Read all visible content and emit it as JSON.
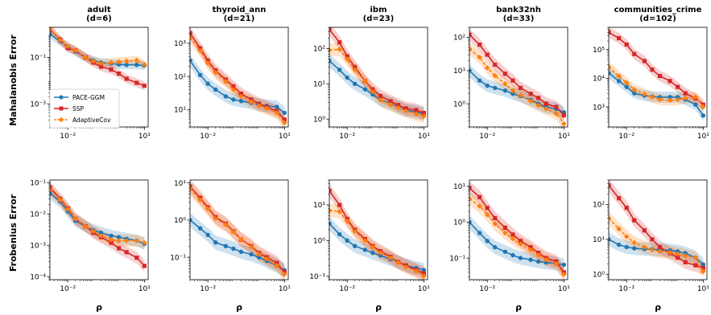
{
  "colors": {
    "PACE-GGM": "#1f77b4",
    "SSP": "#d62728",
    "AdaptiveCov": "#ff7f0e"
  },
  "row_labels": [
    "Mahalanobis Error",
    "Frobenius Error"
  ],
  "legend": {
    "placement": "lower-left",
    "entries": [
      "PACE-GGM",
      "SSP",
      "AdaptiveCov"
    ]
  },
  "chart_data": [
    {
      "type": "line",
      "title": "adult\n(d=6)",
      "xlabel": "",
      "ylabel": "Mahalanobis Error",
      "xscale": "log",
      "yscale": "log",
      "xlim": [
        0.002,
        14
      ],
      "ylim": [
        0.0001,
        2
      ],
      "xticks": [
        0.01,
        10
      ],
      "xtick_labels": [
        "10⁻²",
        "10¹"
      ],
      "yticks": [
        0.001,
        0.1
      ],
      "ytick_labels": [
        "10⁻³",
        "10⁻¹"
      ],
      "x": [
        0.002,
        0.005,
        0.01,
        0.02,
        0.05,
        0.1,
        0.2,
        0.5,
        1,
        2,
        5,
        10
      ],
      "series": [
        {
          "name": "PACE-GGM",
          "values": [
            1.0,
            0.5,
            0.3,
            0.18,
            0.1,
            0.075,
            0.06,
            0.055,
            0.05,
            0.048,
            0.048,
            0.045
          ]
        },
        {
          "name": "SSP",
          "values": [
            1.6,
            0.6,
            0.25,
            0.2,
            0.1,
            0.06,
            0.04,
            0.03,
            0.02,
            0.012,
            0.008,
            0.006
          ]
        },
        {
          "name": "AdaptiveCov",
          "values": [
            1.8,
            0.55,
            0.3,
            0.2,
            0.1,
            0.07,
            0.055,
            0.06,
            0.065,
            0.07,
            0.075,
            0.05
          ]
        }
      ]
    },
    {
      "type": "line",
      "title": "thyroid_ann\n(d=21)",
      "xlabel": "",
      "ylabel": "",
      "xscale": "log",
      "yscale": "log",
      "xlim": [
        0.002,
        14
      ],
      "ylim": [
        3,
        3000
      ],
      "xticks": [
        0.01,
        10
      ],
      "xtick_labels": [
        "10⁻²",
        "10¹"
      ],
      "yticks": [
        10,
        100,
        1000
      ],
      "ytick_labels": [
        "10¹",
        "10²",
        "10³"
      ],
      "x": [
        0.002,
        0.005,
        0.01,
        0.02,
        0.05,
        0.1,
        0.2,
        0.5,
        1,
        2,
        5,
        10
      ],
      "series": [
        {
          "name": "PACE-GGM",
          "values": [
            300,
            110,
            60,
            40,
            25,
            20,
            18,
            16,
            14,
            13,
            12,
            8
          ]
        },
        {
          "name": "SSP",
          "values": [
            2000,
            700,
            300,
            150,
            80,
            50,
            30,
            20,
            15,
            12,
            9,
            5
          ]
        },
        {
          "name": "AdaptiveCov",
          "values": [
            1500,
            600,
            250,
            130,
            70,
            40,
            25,
            17,
            13,
            11,
            8,
            4
          ]
        }
      ]
    },
    {
      "type": "line",
      "title": "ibm\n(d=23)",
      "xlabel": "",
      "ylabel": "",
      "xscale": "log",
      "yscale": "log",
      "xlim": [
        0.002,
        14
      ],
      "ylim": [
        0.6,
        400
      ],
      "xticks": [
        0.01,
        10
      ],
      "xtick_labels": [
        "10⁻²",
        "10¹"
      ],
      "yticks": [
        1,
        10,
        100
      ],
      "ytick_labels": [
        "10⁰",
        "10¹",
        "10²"
      ],
      "x": [
        0.002,
        0.005,
        0.01,
        0.02,
        0.05,
        0.1,
        0.2,
        0.5,
        1,
        2,
        5,
        10
      ],
      "series": [
        {
          "name": "PACE-GGM",
          "values": [
            45,
            25,
            15,
            10,
            7,
            5,
            3.5,
            2.8,
            2.2,
            1.8,
            1.6,
            1.4
          ]
        },
        {
          "name": "SSP",
          "values": [
            350,
            150,
            60,
            30,
            12,
            7,
            4.5,
            3.2,
            2.5,
            2.0,
            1.8,
            1.5
          ]
        },
        {
          "name": "AdaptiveCov",
          "values": [
            90,
            95,
            50,
            25,
            12,
            6,
            3.5,
            2.6,
            2.1,
            1.7,
            1.4,
            1.2
          ]
        }
      ]
    },
    {
      "type": "line",
      "title": "bank32nh\n(d=33)",
      "xlabel": "",
      "ylabel": "",
      "xscale": "log",
      "yscale": "log",
      "xlim": [
        0.002,
        14
      ],
      "ylim": [
        0.2,
        200
      ],
      "xticks": [
        0.01,
        10
      ],
      "xtick_labels": [
        "10⁻²",
        "10¹"
      ],
      "yticks": [
        1,
        10,
        100
      ],
      "ytick_labels": [
        "10⁰",
        "10¹",
        "10²"
      ],
      "x": [
        0.002,
        0.005,
        0.01,
        0.02,
        0.05,
        0.1,
        0.2,
        0.5,
        1,
        2,
        5,
        10
      ],
      "series": [
        {
          "name": "PACE-GGM",
          "values": [
            10,
            5,
            3.5,
            3,
            2.5,
            2,
            1.7,
            1.3,
            1.0,
            0.8,
            0.7,
            0.55
          ]
        },
        {
          "name": "SSP",
          "values": [
            120,
            60,
            30,
            15,
            8,
            5,
            3,
            2,
            1.5,
            1.0,
            0.8,
            0.45
          ]
        },
        {
          "name": "AdaptiveCov",
          "values": [
            45,
            25,
            12,
            7,
            4,
            2.5,
            1.8,
            1.2,
            0.9,
            0.7,
            0.5,
            0.25
          ]
        }
      ]
    },
    {
      "type": "line",
      "title": "communities_crime\n(d=102)",
      "xlabel": "",
      "ylabel": "",
      "xscale": "log",
      "yscale": "log",
      "xlim": [
        0.002,
        14
      ],
      "ylim": [
        200,
        600000
      ],
      "xticks": [
        0.01,
        10
      ],
      "xtick_labels": [
        "10⁻²",
        "10¹"
      ],
      "yticks": [
        1000,
        10000,
        100000
      ],
      "ytick_labels": [
        "10³",
        "10⁴",
        "10⁵"
      ],
      "x": [
        0.002,
        0.005,
        0.01,
        0.02,
        0.05,
        0.1,
        0.2,
        0.5,
        1,
        2,
        5,
        10
      ],
      "series": [
        {
          "name": "PACE-GGM",
          "values": [
            15000,
            8000,
            5000,
            3000,
            2500,
            2300,
            2200,
            2200,
            2200,
            1800,
            1200,
            500
          ]
        },
        {
          "name": "SSP",
          "values": [
            400000,
            250000,
            150000,
            70000,
            40000,
            20000,
            12000,
            8000,
            5000,
            3000,
            2000,
            1200
          ]
        },
        {
          "name": "AdaptiveCov",
          "values": [
            25000,
            12000,
            7000,
            4000,
            2800,
            2200,
            1800,
            1700,
            1800,
            2000,
            2200,
            1000
          ]
        }
      ]
    },
    {
      "type": "line",
      "title": "",
      "xlabel": "ρ",
      "ylabel": "Frobenius Error",
      "xscale": "log",
      "yscale": "log",
      "xlim": [
        0.002,
        14
      ],
      "ylim": [
        8e-05,
        0.12
      ],
      "xticks": [
        0.01,
        10
      ],
      "xtick_labels": [
        "10⁻²",
        "10¹"
      ],
      "yticks": [
        0.0001,
        0.001,
        0.01,
        0.1
      ],
      "ytick_labels": [
        "10⁻⁴",
        "10⁻³",
        "10⁻²",
        "10⁻¹"
      ],
      "x": [
        0.002,
        0.005,
        0.01,
        0.02,
        0.05,
        0.1,
        0.2,
        0.5,
        1,
        2,
        5,
        10
      ],
      "series": [
        {
          "name": "PACE-GGM",
          "values": [
            0.045,
            0.025,
            0.012,
            0.006,
            0.004,
            0.003,
            0.0025,
            0.002,
            0.0018,
            0.0016,
            0.0014,
            0.0011
          ]
        },
        {
          "name": "SSP",
          "values": [
            0.07,
            0.03,
            0.015,
            0.007,
            0.004,
            0.0025,
            0.0018,
            0.0012,
            0.0008,
            0.0006,
            0.0004,
            0.00022
          ]
        },
        {
          "name": "AdaptiveCov",
          "values": [
            0.06,
            0.028,
            0.014,
            0.007,
            0.004,
            0.0028,
            0.002,
            0.0015,
            0.0014,
            0.0014,
            0.0014,
            0.0012
          ]
        }
      ]
    },
    {
      "type": "line",
      "title": "",
      "xlabel": "ρ",
      "ylabel": "",
      "xscale": "log",
      "yscale": "log",
      "xlim": [
        0.002,
        14
      ],
      "ylim": [
        0.025,
        12
      ],
      "xticks": [
        0.01,
        10
      ],
      "xtick_labels": [
        "10⁻²",
        "10¹"
      ],
      "yticks": [
        0.1,
        1,
        10
      ],
      "ytick_labels": [
        "10⁻¹",
        "10⁰",
        "10¹"
      ],
      "x": [
        0.002,
        0.005,
        0.01,
        0.02,
        0.05,
        0.1,
        0.2,
        0.5,
        1,
        2,
        5,
        10
      ],
      "series": [
        {
          "name": "PACE-GGM",
          "values": [
            1.0,
            0.6,
            0.4,
            0.25,
            0.2,
            0.17,
            0.14,
            0.12,
            0.1,
            0.08,
            0.06,
            0.045
          ]
        },
        {
          "name": "SSP",
          "values": [
            8,
            4,
            2.2,
            1.2,
            0.8,
            0.5,
            0.3,
            0.2,
            0.13,
            0.1,
            0.07,
            0.04
          ]
        },
        {
          "name": "AdaptiveCov",
          "values": [
            7,
            3.5,
            2.0,
            1.1,
            0.75,
            0.48,
            0.3,
            0.19,
            0.12,
            0.09,
            0.06,
            0.035
          ]
        }
      ]
    },
    {
      "type": "line",
      "title": "",
      "xlabel": "ρ",
      "ylabel": "",
      "xscale": "log",
      "yscale": "log",
      "xlim": [
        0.002,
        14
      ],
      "ylim": [
        0.08,
        50
      ],
      "xticks": [
        0.01,
        10
      ],
      "xtick_labels": [
        "10⁻²",
        "10¹"
      ],
      "yticks": [
        0.1,
        1,
        10
      ],
      "ytick_labels": [
        "10⁻¹",
        "10⁰",
        "10¹"
      ],
      "x": [
        0.002,
        0.005,
        0.01,
        0.02,
        0.05,
        0.1,
        0.2,
        0.5,
        1,
        2,
        5,
        10
      ],
      "series": [
        {
          "name": "PACE-GGM",
          "values": [
            3,
            1.5,
            1.0,
            0.7,
            0.55,
            0.45,
            0.38,
            0.3,
            0.25,
            0.2,
            0.17,
            0.15
          ]
        },
        {
          "name": "SSP",
          "values": [
            25,
            10,
            4,
            2,
            1.1,
            0.7,
            0.5,
            0.35,
            0.25,
            0.2,
            0.15,
            0.12
          ]
        },
        {
          "name": "AdaptiveCov",
          "values": [
            7,
            6.5,
            3.5,
            1.8,
            1.0,
            0.65,
            0.45,
            0.33,
            0.24,
            0.18,
            0.14,
            0.1
          ]
        }
      ]
    },
    {
      "type": "line",
      "title": "",
      "xlabel": "ρ",
      "ylabel": "",
      "xscale": "log",
      "yscale": "log",
      "xlim": [
        0.002,
        14
      ],
      "ylim": [
        0.025,
        15
      ],
      "xticks": [
        0.01,
        10
      ],
      "xtick_labels": [
        "10⁻²",
        "10¹"
      ],
      "yticks": [
        0.1,
        1,
        10
      ],
      "ytick_labels": [
        "10⁻¹",
        "10⁰",
        "10¹"
      ],
      "x": [
        0.002,
        0.005,
        0.01,
        0.02,
        0.05,
        0.1,
        0.2,
        0.5,
        1,
        2,
        5,
        10
      ],
      "series": [
        {
          "name": "PACE-GGM",
          "values": [
            1.0,
            0.5,
            0.3,
            0.2,
            0.15,
            0.12,
            0.1,
            0.09,
            0.08,
            0.075,
            0.07,
            0.065
          ]
        },
        {
          "name": "SSP",
          "values": [
            9,
            5,
            2.5,
            1.3,
            0.7,
            0.45,
            0.3,
            0.2,
            0.14,
            0.1,
            0.08,
            0.04
          ]
        },
        {
          "name": "AdaptiveCov",
          "values": [
            4.5,
            2.8,
            1.6,
            0.9,
            0.5,
            0.35,
            0.25,
            0.17,
            0.12,
            0.09,
            0.07,
            0.035
          ]
        }
      ]
    },
    {
      "type": "line",
      "title": "",
      "xlabel": "ρ",
      "ylabel": "",
      "xscale": "log",
      "yscale": "log",
      "xlim": [
        0.002,
        14
      ],
      "ylim": [
        0.7,
        500
      ],
      "xticks": [
        0.01,
        10
      ],
      "xtick_labels": [
        "10⁻²",
        "10¹"
      ],
      "yticks": [
        1,
        10,
        100
      ],
      "ytick_labels": [
        "10⁰",
        "10¹",
        "10²"
      ],
      "x": [
        0.002,
        0.005,
        0.01,
        0.02,
        0.05,
        0.1,
        0.2,
        0.5,
        1,
        2,
        5,
        10
      ],
      "series": [
        {
          "name": "PACE-GGM",
          "values": [
            10,
            7,
            6,
            5.5,
            5.3,
            5.2,
            5.0,
            4.8,
            4.5,
            4.0,
            3.0,
            1.9
          ]
        },
        {
          "name": "SSP",
          "values": [
            350,
            150,
            80,
            35,
            18,
            10,
            6,
            4,
            3,
            2.2,
            1.8,
            1.5
          ]
        },
        {
          "name": "AdaptiveCov",
          "values": [
            40,
            20,
            12,
            8,
            6,
            5,
            4.5,
            4.2,
            3.8,
            3.4,
            3.0,
            1.2
          ]
        }
      ]
    }
  ]
}
